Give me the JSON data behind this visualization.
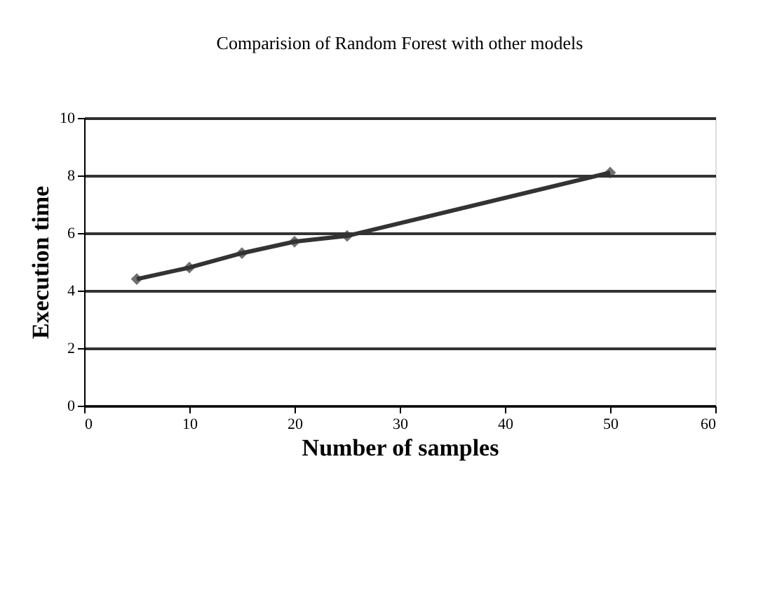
{
  "chart_data": {
    "type": "line",
    "title": "Comparision of Random Forest with other models",
    "xlabel": "Number of samples",
    "ylabel": "Execution time",
    "x": [
      5,
      10,
      15,
      20,
      25,
      50
    ],
    "series": [
      {
        "color": "#333333",
        "values": [
          4.4,
          4.8,
          5.3,
          5.7,
          5.9,
          8.1
        ]
      }
    ],
    "xlim": [
      0,
      60
    ],
    "xticks": [
      0,
      10,
      20,
      30,
      40,
      50,
      60
    ],
    "ylim": [
      0,
      10
    ],
    "yticks": [
      0,
      2,
      4,
      6,
      8,
      10
    ],
    "grid": "y",
    "legend": false,
    "marker": "diamond",
    "line_style": "solid"
  }
}
